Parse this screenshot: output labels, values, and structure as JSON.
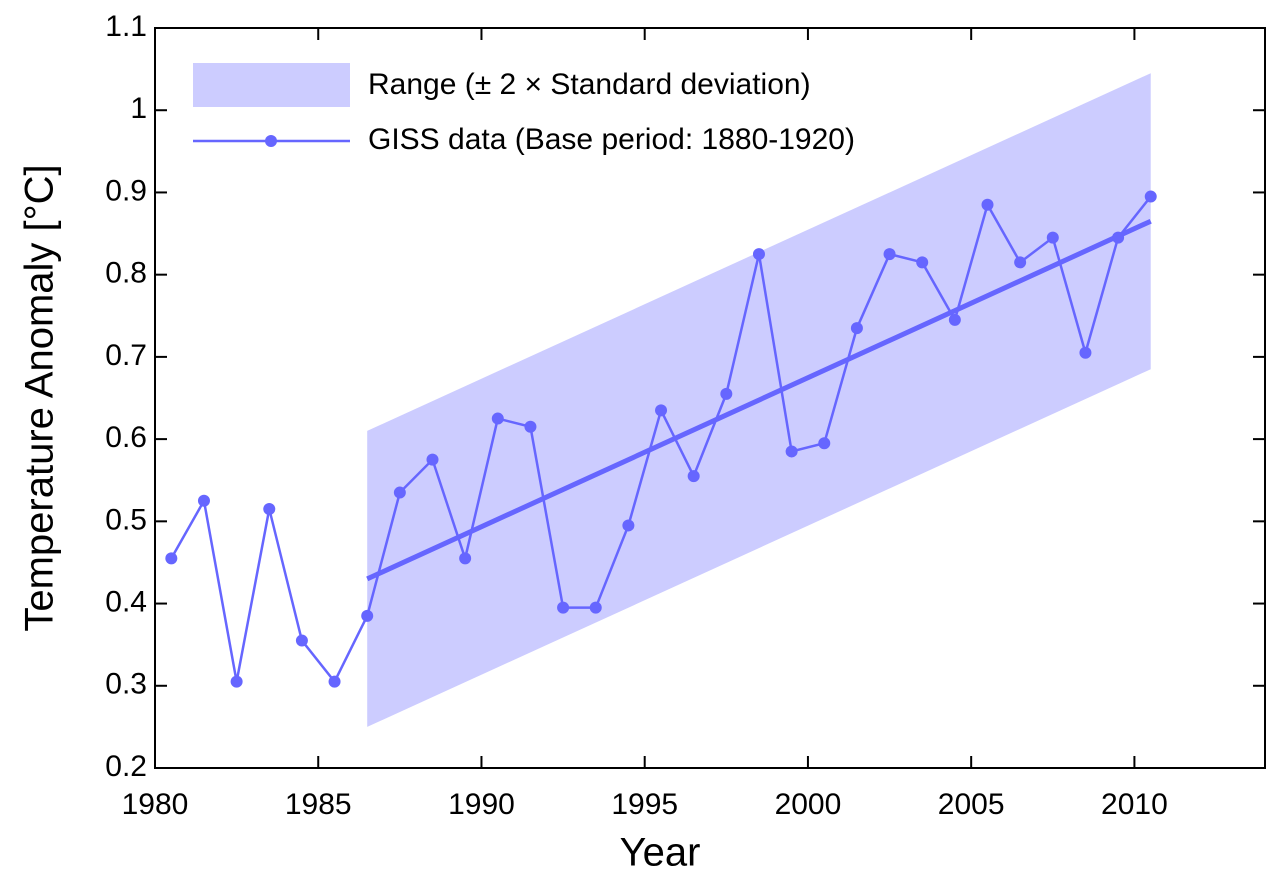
{
  "chart_data": {
    "type": "line",
    "xlabel": "Year",
    "ylabel": "Temperature Anomaly [°C]",
    "xlim": [
      1980,
      2014
    ],
    "ylim": [
      0.2,
      1.1
    ],
    "xticks": [
      1980,
      1985,
      1990,
      1995,
      2000,
      2005,
      2010
    ],
    "yticks": [
      0.2,
      0.3,
      0.4,
      0.5,
      0.6,
      0.7,
      0.8,
      0.9,
      1,
      1.1
    ],
    "grid": false,
    "legend": "upper left",
    "band": {
      "name": "Range (± 2 × Standard deviation)",
      "color": "#ccccff",
      "x": [
        1986.5,
        2010.5
      ],
      "lower": [
        0.25,
        0.685
      ],
      "upper": [
        0.61,
        1.045
      ]
    },
    "trend": {
      "color": "#6666ff",
      "x": [
        1986.5,
        2010.5
      ],
      "values": [
        0.43,
        0.865
      ]
    },
    "series": [
      {
        "name": "GISS data (Base period: 1880-1920)",
        "color": "#6666ff",
        "x": [
          1980.5,
          1981.5,
          1982.5,
          1983.5,
          1984.5,
          1985.5,
          1986.5,
          1987.5,
          1988.5,
          1989.5,
          1990.5,
          1991.5,
          1992.5,
          1993.5,
          1994.5,
          1995.5,
          1996.5,
          1997.5,
          1998.5,
          1999.5,
          2000.5,
          2001.5,
          2002.5,
          2003.5,
          2004.5,
          2005.5,
          2006.5,
          2007.5,
          2008.5,
          2009.5,
          2010.5
        ],
        "values": [
          0.455,
          0.525,
          0.305,
          0.515,
          0.355,
          0.305,
          0.385,
          0.535,
          0.575,
          0.455,
          0.625,
          0.615,
          0.395,
          0.395,
          0.495,
          0.635,
          0.555,
          0.655,
          0.825,
          0.585,
          0.595,
          0.735,
          0.825,
          0.815,
          0.745,
          0.885,
          0.815,
          0.845,
          0.705,
          0.845,
          0.895
        ]
      }
    ]
  }
}
